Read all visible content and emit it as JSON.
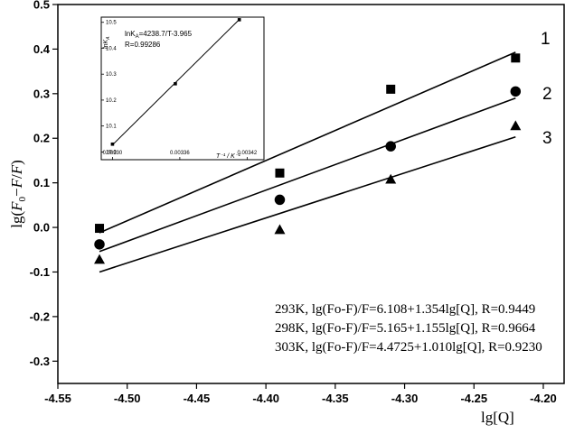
{
  "chart_data": [
    {
      "type": "scatter",
      "title": "",
      "xlabel": "lg[Q]",
      "ylabel": "lg(F0-F/F)",
      "xlim": [
        -4.55,
        -4.185
      ],
      "ylim": [
        -0.35,
        0.5
      ],
      "grid": false,
      "x_ticks": [
        "-4.55",
        "-4.50",
        "-4.45",
        "-4.40",
        "-4.35",
        "-4.30",
        "-4.25",
        "-4.20"
      ],
      "x_tick_values": [
        -4.55,
        -4.5,
        -4.45,
        -4.4,
        -4.35,
        -4.3,
        -4.25,
        -4.2
      ],
      "y_ticks": [
        "0.5",
        "0.4",
        "0.3",
        "0.2",
        "0.1",
        "0.0",
        "-0.1",
        "-0.2",
        "-0.3"
      ],
      "y_tick_values": [
        0.5,
        0.4,
        0.3,
        0.2,
        0.1,
        0.0,
        -0.1,
        -0.2,
        -0.3
      ],
      "series": [
        {
          "name": "1",
          "marker": "square",
          "x": [
            -4.52,
            -4.39,
            -4.31,
            -4.22
          ],
          "y": [
            -0.002,
            0.122,
            0.31,
            0.38
          ],
          "fit": {
            "x": [
              -4.52,
              -4.22
            ],
            "y": [
              -0.012,
              0.393
            ]
          }
        },
        {
          "name": "2",
          "marker": "circle",
          "x": [
            -4.52,
            -4.39,
            -4.31,
            -4.22
          ],
          "y": [
            -0.038,
            0.062,
            0.182,
            0.305
          ],
          "fit": {
            "x": [
              -4.52,
              -4.22
            ],
            "y": [
              -0.054,
              0.29
            ]
          }
        },
        {
          "name": "3",
          "marker": "triangle",
          "x": [
            -4.52,
            -4.39,
            -4.31,
            -4.22
          ],
          "y": [
            -0.072,
            -0.005,
            0.108,
            0.228
          ],
          "fit": {
            "x": [
              -4.52,
              -4.22
            ],
            "y": [
              -0.1,
              0.203
            ]
          }
        }
      ],
      "annotations": [
        "293K, lg(Fo-F)/F=6.108+1.354lg[Q], R=0.9449",
        "298K, lg(Fo-F)/F=5.165+1.155lg[Q], R=0.9664",
        "303K, lg(Fo-F)/F=4.4725+1.010lg[Q], R=0.9230"
      ]
    },
    {
      "type": "scatter",
      "title": "",
      "xlabel": "T⁻¹ / K⁻¹",
      "ylabel": "lnK_A",
      "xlim": [
        0.00329,
        0.003435
      ],
      "ylim": [
        9.97,
        10.52
      ],
      "x_ticks": [
        "0.00330",
        "0.00336",
        "0.00342"
      ],
      "x_tick_values": [
        0.0033,
        0.00336,
        0.00342
      ],
      "y_ticks": [
        "10.5",
        "10.4",
        "10.3",
        "10.2",
        "10.1",
        "10.0"
      ],
      "y_tick_values": [
        10.5,
        10.4,
        10.3,
        10.2,
        10.1,
        10.0
      ],
      "series": [
        {
          "name": "",
          "marker": "square",
          "x": [
            0.0033,
            0.003356,
            0.003413
          ],
          "y": [
            10.03,
            10.263,
            10.51
          ],
          "fit": {
            "x": [
              0.0033,
              0.003413
            ],
            "y": [
              10.027,
              10.511
            ]
          }
        }
      ],
      "annotations": [
        "lnK_A=4238.7/T-3.965",
        "R=0.99286"
      ]
    }
  ]
}
